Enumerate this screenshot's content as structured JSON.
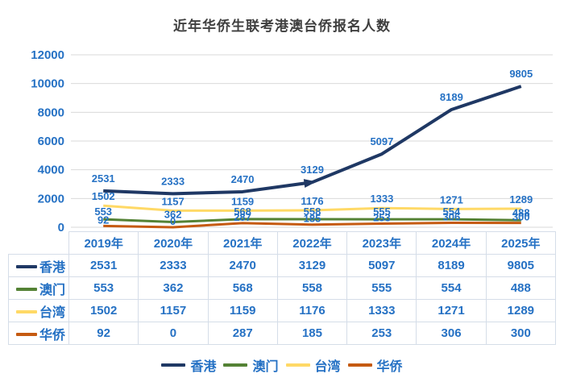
{
  "title": "近年华侨生联考港澳台侨报名人数",
  "colors": {
    "title": "#3f3f3f",
    "value_label": "#2571C4",
    "gridline": "#D9D9D9",
    "table_border": "#d5dde8"
  },
  "chart_data": {
    "type": "line",
    "title": "近年华侨生联考港澳台侨报名人数",
    "categories": [
      "2019年",
      "2020年",
      "2021年",
      "2022年",
      "2023年",
      "2024年",
      "2025年"
    ],
    "series": [
      {
        "key": "hongkong",
        "name": "香港",
        "color": "#1F3864",
        "values": [
          2531,
          2333,
          2470,
          3129,
          5097,
          8189,
          9805
        ]
      },
      {
        "key": "macau",
        "name": "澳门",
        "color": "#548235",
        "values": [
          553,
          362,
          568,
          558,
          555,
          554,
          488
        ]
      },
      {
        "key": "taiwan",
        "name": "台湾",
        "color": "#FFD966",
        "values": [
          1502,
          1157,
          1159,
          1176,
          1333,
          1271,
          1289
        ]
      },
      {
        "key": "huaqiao",
        "name": "华侨",
        "color": "#C55A11",
        "values": [
          92,
          0,
          287,
          185,
          253,
          306,
          300
        ]
      }
    ],
    "ylim": [
      0,
      12000
    ],
    "ytick_interval": 2000,
    "ytick_labels": [
      "0",
      "2000",
      "4000",
      "6000",
      "8000",
      "10000",
      "12000"
    ],
    "grid": true,
    "data_labels": true,
    "legend_position": "bottom",
    "annotations": [
      {
        "type": "arrowhead",
        "series": "hongkong",
        "at_category": "2022年"
      }
    ]
  }
}
